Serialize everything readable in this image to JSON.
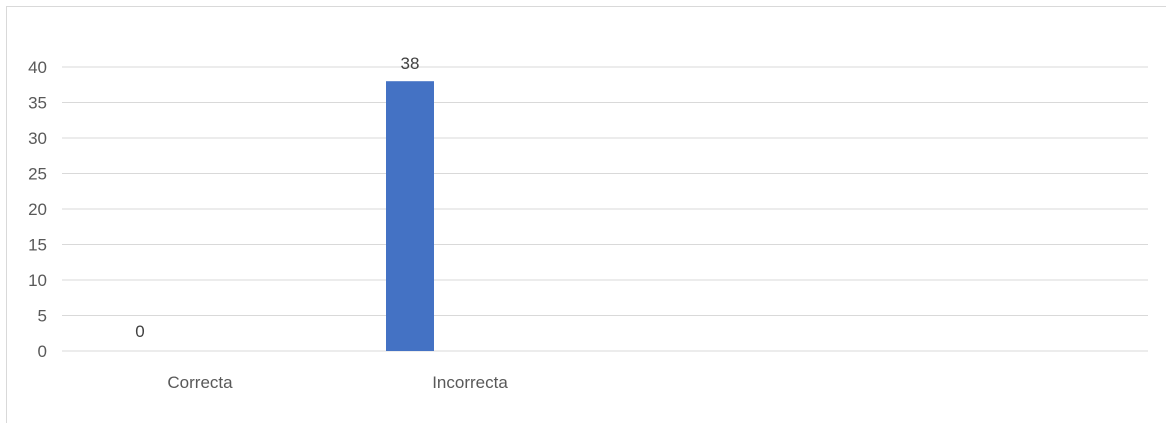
{
  "chart_data": {
    "type": "bar",
    "categories": [
      "Correcta",
      "Incorrecta"
    ],
    "values": [
      0,
      38
    ],
    "title": "",
    "xlabel": "",
    "ylabel": "",
    "ylim": [
      0,
      40
    ],
    "yticks": [
      0,
      5,
      10,
      15,
      20,
      25,
      30,
      35,
      40
    ],
    "grid": true,
    "legend": "none",
    "bar_color": "#4472C4",
    "data_labels": [
      "0",
      "38"
    ]
  }
}
